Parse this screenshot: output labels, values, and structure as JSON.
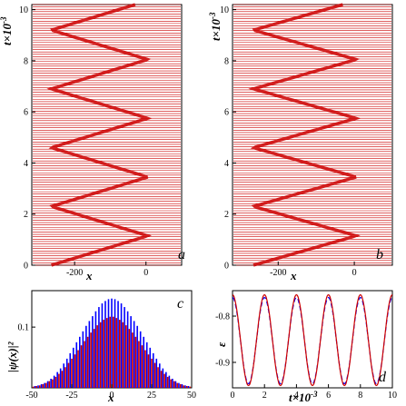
{
  "chart_data": [
    {
      "panel_label": "a",
      "type": "line",
      "xlabel": "x",
      "ylabel": "t×10⁻³",
      "ylabel_main": "t×10",
      "ylabel_exp": "-3",
      "xlim": [
        -320,
        100
      ],
      "ylim": [
        0,
        10.2
      ],
      "xticks": [
        {
          "v": -200,
          "label": "-200"
        },
        {
          "v": 0,
          "label": "0"
        }
      ],
      "yticks": [
        {
          "v": 0,
          "label": "0"
        },
        {
          "v": 2,
          "label": "2"
        },
        {
          "v": 4,
          "label": "4"
        },
        {
          "v": 6,
          "label": "6"
        },
        {
          "v": 8,
          "label": "8"
        },
        {
          "v": 10,
          "label": "10"
        }
      ],
      "trajectory": {
        "center": -130,
        "amplitude": 135,
        "period": 2.3,
        "phase_t": 0.0
      },
      "colors": {
        "lines": "#cc0000",
        "axes": "#000000"
      }
    },
    {
      "panel_label": "b",
      "type": "line",
      "xlabel": "x",
      "ylabel": "t×10⁻³",
      "ylabel_main": "t×10",
      "ylabel_exp": "-3",
      "xlim": [
        -320,
        100
      ],
      "ylim": [
        0,
        10.2
      ],
      "xticks": [
        {
          "v": -200,
          "label": "-200"
        },
        {
          "v": 0,
          "label": "0"
        }
      ],
      "yticks": [
        {
          "v": 0,
          "label": "0"
        },
        {
          "v": 2,
          "label": "2"
        },
        {
          "v": 4,
          "label": "4"
        },
        {
          "v": 6,
          "label": "6"
        },
        {
          "v": 8,
          "label": "8"
        },
        {
          "v": 10,
          "label": "10"
        }
      ],
      "trajectory": {
        "center": -130,
        "amplitude": 135,
        "period": 2.3,
        "phase_t": 0.0
      },
      "colors": {
        "lines": "#cc0000",
        "axes": "#000000"
      }
    },
    {
      "panel_label": "c",
      "type": "bar",
      "xlabel": "x",
      "ylabel": "|ψ(x)|²",
      "xlim": [
        -50,
        50
      ],
      "ylim": [
        0,
        0.16
      ],
      "xticks": [
        {
          "v": -50,
          "label": "-50"
        },
        {
          "v": -25,
          "label": "-25"
        },
        {
          "v": 0,
          "label": "0"
        },
        {
          "v": 25,
          "label": "25"
        },
        {
          "v": 50,
          "label": "50"
        }
      ],
      "yticks": [
        {
          "v": 0.1,
          "label": "0.1"
        }
      ],
      "series": [
        {
          "color": "#0000ff",
          "x": [
            -48,
            -46,
            -44,
            -42,
            -40,
            -38,
            -36,
            -34,
            -32,
            -30,
            -28,
            -26,
            -24,
            -22,
            -20,
            -18,
            -16,
            -14,
            -12,
            -10,
            -8,
            -6,
            -4,
            -2,
            0,
            2,
            4,
            6,
            8,
            10,
            12,
            14,
            16,
            18,
            20,
            22,
            24,
            26,
            28,
            30,
            32,
            34,
            36,
            38,
            40,
            42,
            44,
            46,
            48
          ],
          "values": [
            0.003,
            0.004,
            0.006,
            0.008,
            0.011,
            0.015,
            0.02,
            0.026,
            0.032,
            0.04,
            0.048,
            0.057,
            0.066,
            0.075,
            0.084,
            0.093,
            0.102,
            0.11,
            0.118,
            0.126,
            0.133,
            0.139,
            0.143,
            0.146,
            0.147,
            0.146,
            0.143,
            0.139,
            0.133,
            0.126,
            0.118,
            0.11,
            0.102,
            0.093,
            0.084,
            0.075,
            0.066,
            0.057,
            0.048,
            0.04,
            0.032,
            0.026,
            0.02,
            0.015,
            0.011,
            0.008,
            0.006,
            0.004,
            0.003
          ]
        },
        {
          "color": "#cc0000",
          "x": [
            -49,
            -47,
            -45,
            -43,
            -41,
            -39,
            -37,
            -35,
            -33,
            -31,
            -29,
            -27,
            -25,
            -23,
            -21,
            -19,
            -17,
            -15,
            -13,
            -11,
            -9,
            -7,
            -5,
            -3,
            -1,
            1,
            3,
            5,
            7,
            9,
            11,
            13,
            15,
            17,
            19,
            21,
            23,
            25,
            27,
            29,
            31,
            33,
            35,
            37,
            39,
            41,
            43,
            45,
            47,
            49
          ],
          "values": [
            0.002,
            0.003,
            0.004,
            0.006,
            0.008,
            0.011,
            0.014,
            0.018,
            0.023,
            0.028,
            0.034,
            0.041,
            0.048,
            0.055,
            0.062,
            0.07,
            0.077,
            0.084,
            0.091,
            0.097,
            0.103,
            0.108,
            0.112,
            0.115,
            0.117,
            0.117,
            0.115,
            0.112,
            0.108,
            0.103,
            0.097,
            0.091,
            0.084,
            0.077,
            0.07,
            0.062,
            0.055,
            0.048,
            0.041,
            0.034,
            0.028,
            0.023,
            0.018,
            0.014,
            0.011,
            0.008,
            0.006,
            0.004,
            0.003,
            0.002
          ]
        }
      ]
    },
    {
      "panel_label": "d",
      "type": "line",
      "xlabel": "t×10⁻³",
      "xlabel_main": "t×10",
      "xlabel_exp": "-3",
      "ylabel": "ε",
      "xlim": [
        0,
        10
      ],
      "ylim": [
        -0.955,
        -0.745
      ],
      "xticks": [
        {
          "v": 0,
          "label": "0"
        },
        {
          "v": 2,
          "label": "2"
        },
        {
          "v": 4,
          "label": "4"
        },
        {
          "v": 6,
          "label": "6"
        },
        {
          "v": 8,
          "label": "8"
        },
        {
          "v": 10,
          "label": "10"
        }
      ],
      "yticks": [
        {
          "v": -0.8,
          "label": "-0.8"
        },
        {
          "v": -0.9,
          "label": "-0.9"
        }
      ],
      "series": [
        {
          "color": "#0000ff",
          "style": "dashed",
          "mean": -0.853,
          "amplitude": 0.093,
          "period": 2.0,
          "phase": 0.0
        },
        {
          "color": "#cc0000",
          "style": "solid",
          "mean": -0.852,
          "amplitude": 0.098,
          "period": 2.0,
          "phase": 0.0
        }
      ]
    }
  ]
}
